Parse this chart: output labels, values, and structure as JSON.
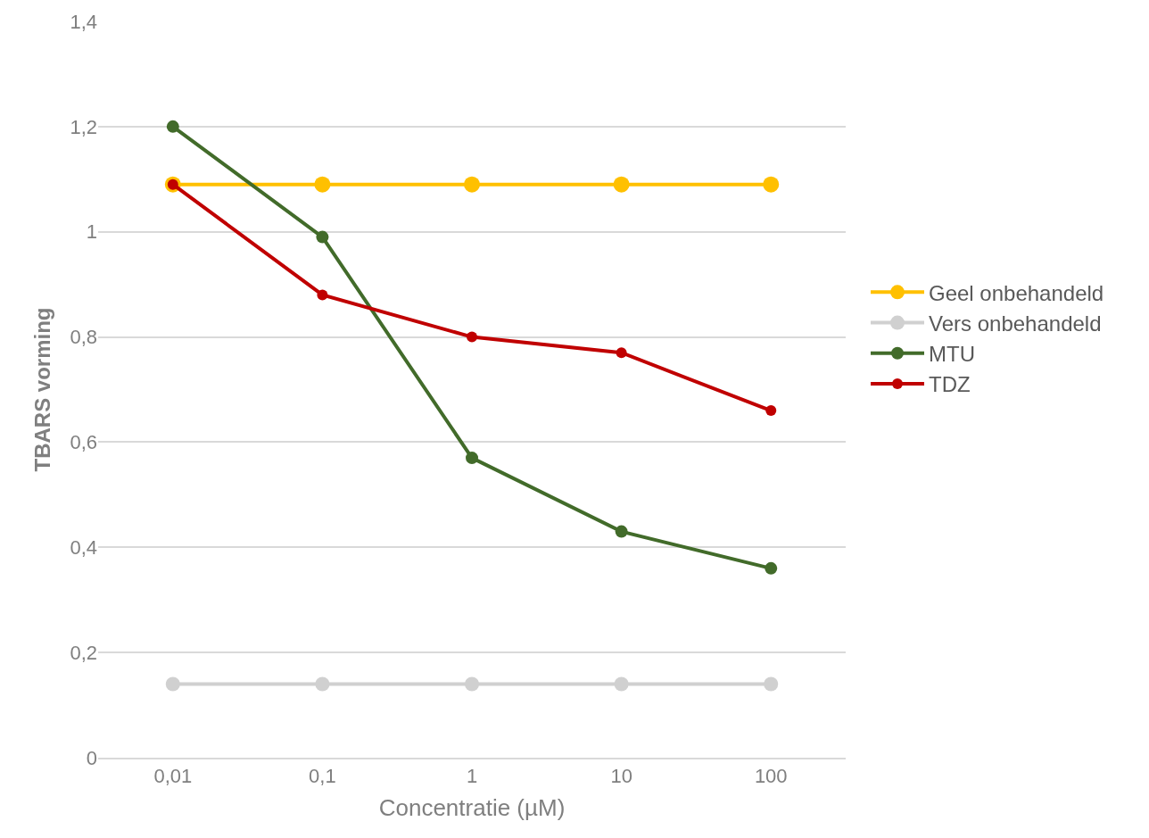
{
  "chart_data": {
    "type": "line",
    "xlabel": "Concentratie (µM)",
    "ylabel": "TBARS vorming",
    "categories": [
      "0,01",
      "0,1",
      "1",
      "10",
      "100"
    ],
    "series": [
      {
        "name": "Geel onbehandeld",
        "color": "#ffc000",
        "values": [
          1.09,
          1.09,
          1.09,
          1.09,
          1.09
        ]
      },
      {
        "name": "Vers onbehandeld",
        "color": "#d0d0d0",
        "values": [
          0.14,
          0.14,
          0.14,
          0.14,
          0.14
        ]
      },
      {
        "name": "MTU",
        "color": "#426b2a",
        "values": [
          1.2,
          0.99,
          0.57,
          0.43,
          0.36
        ]
      },
      {
        "name": "TDZ",
        "color": "#c00000",
        "values": [
          1.09,
          0.88,
          0.8,
          0.77,
          0.66
        ]
      }
    ],
    "ylim": [
      0,
      1.4
    ],
    "yticks": [
      0,
      {
        "value": 0.2,
        "label": "0,2"
      },
      {
        "value": 0.4,
        "label": "0,4"
      },
      {
        "value": 0.6,
        "label": "0,6"
      },
      {
        "value": 0.8,
        "label": "0,8"
      },
      1,
      {
        "value": 1.2,
        "label": "1,2"
      },
      {
        "value": 1.4,
        "label": "1,4"
      }
    ],
    "grid": "y",
    "legend": "right",
    "marker": "circle",
    "line_style": "solid"
  }
}
